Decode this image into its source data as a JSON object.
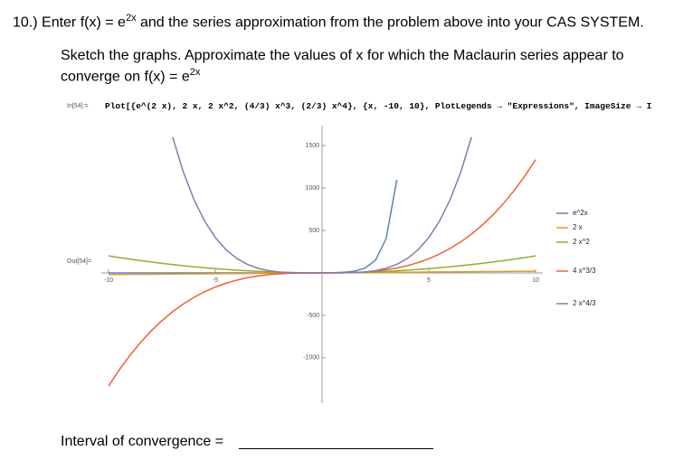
{
  "question": {
    "pre": "10.) Enter f(x) = e",
    "sup": "2x",
    "post": " and the series approximation from the problem above into your CAS SYSTEM."
  },
  "instruction": {
    "pre": "Sketch the graphs. Approximate the values of x for which the Maclaurin series appear to converge on  f(x) = e",
    "sup": "2x"
  },
  "input_label": "In[54]:=",
  "input_code": "Plot[{e^(2 x), 2 x, 2 x^2, (4/3) x^3, (2/3) x^4}, {x, -10, 10}, PlotLegends → \"Expressions\", ImageSize → I",
  "output_label": "Out[54]=",
  "chart_data": {
    "type": "line",
    "x": [
      -10,
      -9.5,
      -9,
      -8.5,
      -8,
      -7.5,
      -7,
      -6.5,
      -6,
      -5.5,
      -5,
      -4.5,
      -4,
      -3.5,
      -3,
      -2.5,
      -2,
      -1.5,
      -1,
      -0.5,
      0,
      0.5,
      1,
      1.5,
      2,
      2.5,
      3,
      3.5,
      4,
      4.5,
      5,
      5.5,
      6,
      6.5,
      7,
      7.5,
      8,
      8.5,
      9,
      9.5,
      10
    ],
    "xlim": [
      -10,
      10
    ],
    "ylim": [
      -1470,
      1650
    ],
    "xticks": [
      -10,
      -5,
      5,
      10
    ],
    "yticks": [
      -1000,
      -500,
      500,
      1000,
      1500
    ],
    "series": [
      {
        "name": "e^2x",
        "color": "#5E81B5",
        "values": [
          0,
          0,
          0,
          0,
          0,
          0,
          0,
          0,
          0,
          0,
          0,
          0,
          0,
          0,
          0,
          0.01,
          0.02,
          0.05,
          0.14,
          0.37,
          1,
          2.72,
          7.39,
          20.09,
          54.6,
          148.4,
          403.4,
          1096.6,
          null,
          null,
          null,
          null,
          null,
          null,
          null,
          null,
          null,
          null,
          null,
          null,
          null
        ]
      },
      {
        "name": "2 x",
        "color": "#E19C24",
        "values": [
          -20,
          -19,
          -18,
          -17,
          -16,
          -15,
          -14,
          -13,
          -12,
          -11,
          -10,
          -9,
          -8,
          -7,
          -6,
          -5,
          -4,
          -3,
          -2,
          -1,
          0,
          1,
          2,
          3,
          4,
          5,
          6,
          7,
          8,
          9,
          10,
          11,
          12,
          13,
          14,
          15,
          16,
          17,
          18,
          19,
          20
        ]
      },
      {
        "name": "2 x^2",
        "color": "#8FB032",
        "values": [
          200,
          180.5,
          162,
          144.5,
          128,
          112.5,
          98,
          84.5,
          72,
          60.5,
          50,
          40.5,
          32,
          24.5,
          18,
          12.5,
          8,
          4.5,
          2,
          0.5,
          0,
          0.5,
          2,
          4.5,
          8,
          12.5,
          18,
          24.5,
          32,
          40.5,
          50,
          60.5,
          72,
          84.5,
          98,
          112.5,
          128,
          144.5,
          162,
          180.5,
          200
        ]
      },
      {
        "name": "4 x^3/3",
        "color": "#EB6235",
        "values": [
          -1333.3,
          -1143.2,
          -972,
          -818.8,
          -682.7,
          -562.5,
          -457.3,
          -366.2,
          -288,
          -221.8,
          -166.7,
          -121.5,
          -85.3,
          -57.2,
          -36,
          -20.8,
          -10.7,
          -4.5,
          -1.3,
          -0.2,
          0,
          0.2,
          1.3,
          4.5,
          10.7,
          20.8,
          36,
          57.2,
          85.3,
          121.5,
          166.7,
          221.8,
          288,
          366.2,
          457.3,
          562.5,
          682.7,
          818.8,
          972,
          1143.2,
          1333.3
        ]
      },
      {
        "name": "2 x^4/3",
        "color": "#8778B3",
        "values": [
          null,
          null,
          null,
          null,
          null,
          null,
          1600.7,
          1190.3,
          864,
          610,
          416.7,
          273.4,
          170.7,
          100,
          54,
          26,
          10.7,
          3.4,
          0.7,
          0.04,
          0,
          0.04,
          0.7,
          3.4,
          10.7,
          26,
          54,
          100,
          170.7,
          273.4,
          416.7,
          610,
          864,
          1190.3,
          1600.7,
          null,
          null,
          null,
          null,
          null,
          null
        ]
      }
    ]
  },
  "answer_label": "Interval of convergence ="
}
